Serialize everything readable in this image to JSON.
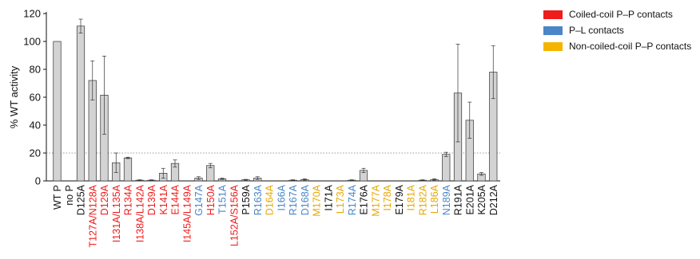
{
  "chart_data": {
    "type": "bar",
    "ylabel": "% WT activity",
    "ylim": [
      0,
      120
    ],
    "yticks": [
      0,
      20,
      40,
      60,
      80,
      100,
      120
    ],
    "reference_line": {
      "y": 20,
      "style": "dotted"
    },
    "categories": [
      {
        "label": "WT P",
        "group": "none",
        "value": 100,
        "err": 0
      },
      {
        "label": "no P",
        "group": "none",
        "value": 0,
        "err": 0
      },
      {
        "label": "D125A",
        "group": "none",
        "value": 111,
        "err": 5
      },
      {
        "label": "T127A/N128A",
        "group": "coiled",
        "value": 72,
        "err": 14
      },
      {
        "label": "D129A",
        "group": "coiled",
        "value": 61.5,
        "err": 28
      },
      {
        "label": "I131A/L135A",
        "group": "coiled",
        "value": 13,
        "err": 7
      },
      {
        "label": "R134A",
        "group": "coiled",
        "value": 16.5,
        "err": 0.5
      },
      {
        "label": "I138A/L142A",
        "group": "coiled",
        "value": 0.5,
        "err": 0.3
      },
      {
        "label": "D139A",
        "group": "coiled",
        "value": 0.5,
        "err": 0.3
      },
      {
        "label": "K141A",
        "group": "coiled",
        "value": 5.5,
        "err": 3.5
      },
      {
        "label": "E144A",
        "group": "coiled",
        "value": 12.5,
        "err": 2.5
      },
      {
        "label": "I145A/L149A",
        "group": "coiled",
        "value": 0,
        "err": 0
      },
      {
        "label": "G147A",
        "group": "pl",
        "value": 2,
        "err": 1
      },
      {
        "label": "H150A",
        "group": "coiled",
        "value": 11,
        "err": 1.5
      },
      {
        "label": "T151A",
        "group": "pl",
        "value": 1.5,
        "err": 0.5
      },
      {
        "label": "L152A/S156A",
        "group": "coiled",
        "value": 0,
        "err": 0
      },
      {
        "label": "P159A",
        "group": "none",
        "value": 0.8,
        "err": 0.3
      },
      {
        "label": "R163A",
        "group": "pl",
        "value": 2,
        "err": 1
      },
      {
        "label": "D164A",
        "group": "noncoiled",
        "value": 0,
        "err": 0
      },
      {
        "label": "I166A",
        "group": "pl",
        "value": 0,
        "err": 0
      },
      {
        "label": "R167A",
        "group": "pl",
        "value": 0.5,
        "err": 0.3
      },
      {
        "label": "D168A",
        "group": "pl",
        "value": 1,
        "err": 0.5
      },
      {
        "label": "M170A",
        "group": "noncoiled",
        "value": 0,
        "err": 0
      },
      {
        "label": "I171A",
        "group": "none",
        "value": 0,
        "err": 0
      },
      {
        "label": "L173A",
        "group": "noncoiled",
        "value": 0,
        "err": 0
      },
      {
        "label": "R174A",
        "group": "pl",
        "value": 0.5,
        "err": 0.3
      },
      {
        "label": "E176A",
        "group": "none",
        "value": 7.5,
        "err": 1.5
      },
      {
        "label": "M177A",
        "group": "noncoiled",
        "value": 0,
        "err": 0
      },
      {
        "label": "I178A",
        "group": "noncoiled",
        "value": 0,
        "err": 0
      },
      {
        "label": "E179A",
        "group": "none",
        "value": 0,
        "err": 0
      },
      {
        "label": "I181A",
        "group": "noncoiled",
        "value": 0,
        "err": 0
      },
      {
        "label": "R182A",
        "group": "noncoiled",
        "value": 0.5,
        "err": 0.3
      },
      {
        "label": "L186A",
        "group": "noncoiled",
        "value": 1,
        "err": 0.5
      },
      {
        "label": "N189A",
        "group": "pl",
        "value": 19,
        "err": 1.5
      },
      {
        "label": "R191A",
        "group": "none",
        "value": 63,
        "err": 35
      },
      {
        "label": "E201A",
        "group": "none",
        "value": 43.5,
        "err": 13
      },
      {
        "label": "K205A",
        "group": "none",
        "value": 5,
        "err": 1
      },
      {
        "label": "D212A",
        "group": "none",
        "value": 78,
        "err": 19
      }
    ],
    "legend": {
      "placement": "top-right",
      "entries": [
        {
          "name": "Coiled-coil P–P contacts",
          "group": "coiled",
          "color": "#ee1c1c"
        },
        {
          "name": "P–L contacts",
          "group": "pl",
          "color": "#4a86c8"
        },
        {
          "name": "Non-coiled-coil P–P contacts",
          "group": "noncoiled",
          "color": "#f5b400"
        }
      ]
    },
    "colors": {
      "none": "#111111",
      "coiled": "#ee1c1c",
      "pl": "#4a86c8",
      "noncoiled": "#e8a800",
      "bar_fill": "#d3d3d3",
      "bar_stroke": "#333333"
    }
  }
}
